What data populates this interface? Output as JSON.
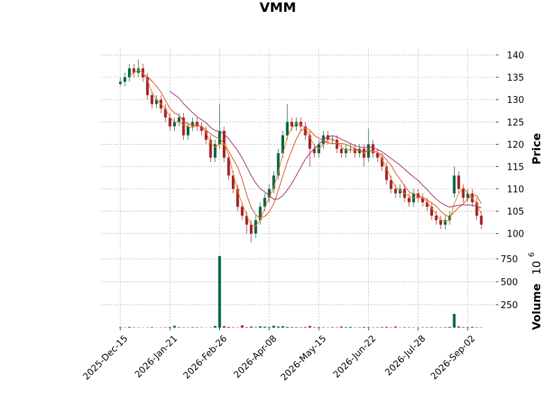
{
  "chart_data": {
    "type": "candlestick",
    "title": "VMM",
    "y_label": "Price",
    "volume_label": "Volume",
    "volume_offset_base": "10",
    "volume_offset_exponent": "6",
    "up_color": "#006340",
    "down_color": "#a02128",
    "mav": [
      3,
      6,
      12
    ],
    "mav_colors": [
      "#f27d2b",
      "#e0521b",
      "#a0356a"
    ],
    "grid": true,
    "xlim": [
      -4.3,
      83.2
    ],
    "xticks": [
      {
        "value": 0,
        "label": "2025-Dec-15"
      },
      {
        "value": 11,
        "label": "2026-Jan-21"
      },
      {
        "value": 22,
        "label": "2026-Feb-26"
      },
      {
        "value": 33,
        "label": "2026-Apr-08"
      },
      {
        "value": 44,
        "label": "2026-May-15"
      },
      {
        "value": 55,
        "label": "2026-Jun-22"
      },
      {
        "value": 66,
        "label": "2026-Jul-28"
      },
      {
        "value": 77,
        "label": "2026-Sep-02"
      }
    ],
    "ylim": [
      97,
      141.4
    ],
    "yticks": [
      100,
      105,
      110,
      115,
      120,
      125,
      130,
      135,
      140
    ],
    "volume_ylim": [
      0,
      841
    ],
    "volume_yticks": [
      250,
      500,
      750
    ],
    "open": [
      133.5,
      134,
      135,
      137,
      136,
      137,
      135,
      131,
      129,
      130,
      128,
      126,
      124,
      125,
      126,
      122,
      124,
      125,
      124,
      123,
      121,
      117,
      120,
      123,
      117,
      113,
      110,
      106,
      104,
      102,
      100,
      103,
      106,
      108,
      110,
      113,
      118,
      122,
      125,
      124,
      125,
      124,
      122,
      119,
      118,
      120,
      122,
      121,
      121,
      119,
      118,
      119,
      119,
      118,
      119,
      117,
      120,
      118,
      117,
      115,
      112,
      110,
      109,
      110,
      108,
      107,
      109,
      108,
      107,
      106,
      104,
      103,
      102,
      103,
      109,
      113,
      110,
      108,
      109,
      107,
      104
    ],
    "high": [
      135,
      136,
      138,
      138,
      139,
      138,
      136,
      132,
      131,
      131,
      129,
      127,
      126,
      127,
      127,
      125,
      126,
      126,
      125,
      124,
      122,
      121,
      129,
      124,
      118,
      114,
      111,
      107,
      105,
      103,
      104,
      107,
      109,
      111,
      114,
      119,
      123,
      129,
      126,
      126,
      126,
      125,
      123,
      120,
      121,
      123,
      123,
      122,
      122,
      120,
      120,
      120,
      120,
      120,
      120,
      123.5,
      121,
      119,
      118,
      116,
      113,
      111,
      111,
      111,
      109,
      110,
      110,
      109,
      108,
      107,
      105,
      104,
      104,
      105,
      115,
      114,
      111,
      110,
      110,
      108,
      105
    ],
    "low": [
      133,
      133,
      134,
      135,
      135,
      134,
      130,
      128,
      128,
      127,
      125,
      123,
      123,
      124,
      121,
      121,
      123,
      123,
      122,
      120,
      116,
      116,
      119,
      116,
      112,
      109,
      105,
      103,
      100,
      98,
      99,
      102,
      105,
      107,
      109,
      112,
      117,
      121,
      123,
      123,
      123,
      121,
      115,
      117,
      117,
      119,
      120,
      120,
      118,
      117,
      117,
      118,
      117,
      117,
      115,
      116,
      117,
      116,
      114,
      111,
      109,
      108,
      108,
      107,
      106,
      106,
      107,
      106,
      105,
      103,
      102,
      101,
      101,
      102,
      108,
      109,
      107,
      107,
      106,
      103,
      101
    ],
    "close": [
      134,
      135,
      137,
      136,
      137,
      135,
      131,
      129,
      130,
      128,
      126,
      124,
      125,
      126,
      122,
      124,
      125,
      124,
      123,
      121,
      117,
      120,
      123,
      117,
      113,
      110,
      106,
      104,
      102,
      100,
      103,
      106,
      108,
      110,
      113,
      118,
      122,
      125,
      124,
      125,
      124,
      122,
      119,
      118,
      120,
      122,
      121,
      121,
      119,
      118,
      119,
      119,
      118,
      119,
      117,
      120,
      118,
      117,
      115,
      112,
      110,
      109,
      110,
      108,
      107,
      109,
      108,
      107,
      106,
      104,
      103,
      102,
      103,
      104,
      113,
      110,
      108,
      109,
      107,
      104,
      102
    ],
    "volume": [
      5,
      3,
      8,
      4,
      3,
      2,
      3,
      6,
      2,
      3,
      4,
      6,
      20,
      5,
      4,
      3,
      5,
      4,
      3,
      2,
      3,
      18,
      780,
      15,
      8,
      4,
      3,
      25,
      6,
      12,
      5,
      14,
      10,
      6,
      20,
      12,
      15,
      8,
      6,
      5,
      4,
      7,
      18,
      5,
      6,
      4,
      3,
      5,
      4,
      12,
      6,
      8,
      3,
      4,
      7,
      5,
      3,
      4,
      6,
      9,
      4,
      12,
      3,
      5,
      4,
      3,
      2,
      4,
      5,
      6,
      3,
      4,
      5,
      8,
      150,
      12,
      6,
      5,
      9,
      4,
      3
    ]
  }
}
